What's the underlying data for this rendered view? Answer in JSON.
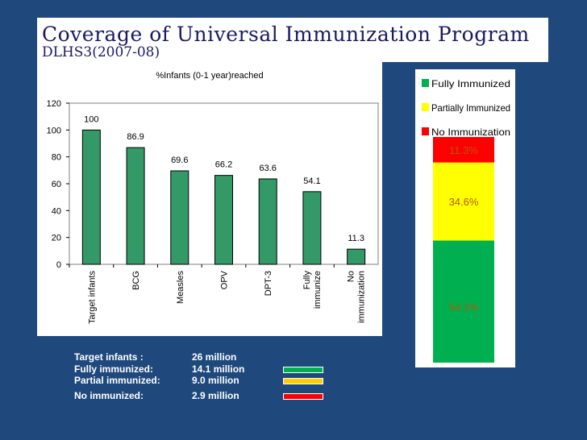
{
  "title": {
    "line1": "Coverage of Universal Immunization Program",
    "line2": "DLHS3(2007-08)"
  },
  "chart_data": [
    {
      "type": "bar",
      "title": "%Infants (0-1 year)reached",
      "categories": [
        "Target infants",
        "BCG",
        "Measles",
        "OPV",
        "DPT-3",
        "Fully immunize",
        "No immunization"
      ],
      "category_lines": [
        [
          "Target infants"
        ],
        [
          "BCG"
        ],
        [
          "Measles"
        ],
        [
          "OPV"
        ],
        [
          "DPT-3"
        ],
        [
          "Fully",
          "immunize"
        ],
        [
          "No",
          "immunization"
        ]
      ],
      "values": [
        100,
        86.9,
        69.6,
        66.2,
        63.6,
        54.1,
        11.3
      ],
      "value_labels": [
        "100",
        "86.9",
        "69.6",
        "66.2",
        "63.6",
        "54.1",
        "11.3"
      ],
      "ylim": [
        0,
        120
      ],
      "yticks": [
        0,
        20,
        40,
        60,
        80,
        100,
        120
      ],
      "bar_color": "#339966",
      "xlabel": "",
      "ylabel": ""
    },
    {
      "type": "bar",
      "stacked": true,
      "series": [
        {
          "name": "Fully Immunized",
          "value": 54.1,
          "label": "54.1%",
          "color": "#00b050"
        },
        {
          "name": "Partially Immunized",
          "value": 34.6,
          "label": "34.6%",
          "color": "#ffff00"
        },
        {
          "name": "No Immunization",
          "value": 11.3,
          "label": "11.3%",
          "color": "#ff0000"
        }
      ],
      "legend": [
        "Fully Immunized",
        "Partially Immunized",
        "No Immunization"
      ]
    }
  ],
  "legend_table": [
    {
      "label": "Target infants :",
      "value": "26 million",
      "color": ""
    },
    {
      "label": "Fully immunized:",
      "value": "14.1 million",
      "color": "#00b050"
    },
    {
      "label": "Partial immunized:",
      "value": "9.0 million",
      "color": "#ffcc00"
    },
    {
      "label": "No immunized:",
      "value": "2.9 million",
      "color": "#ff0000"
    }
  ]
}
